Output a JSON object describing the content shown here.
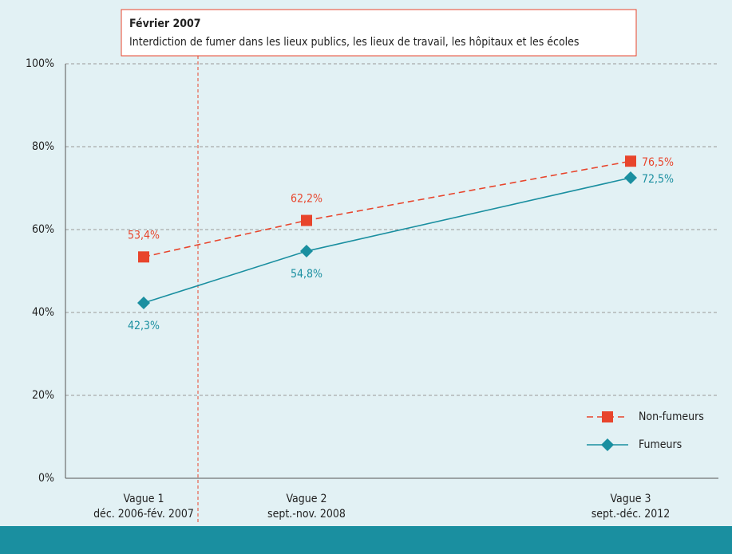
{
  "chart_data": {
    "type": "line",
    "annotation": {
      "title": "Février 2007",
      "text": "Interdiction de fumer dans les lieux publics, les lieux de travail, les hôpitaux et les écoles"
    },
    "categories": [
      [
        "Vague 1",
        "déc. 2006-fév. 2007"
      ],
      [
        "Vague 2",
        "sept.-nov. 2008"
      ],
      [
        "Vague 3",
        "sept.-déc. 2012"
      ]
    ],
    "series": [
      {
        "name": "Non-fumeurs",
        "color": "#e8452c",
        "dashed": true,
        "marker": "square",
        "values": [
          53.4,
          62.2,
          76.5
        ],
        "value_labels": [
          "53,4%",
          "62,2%",
          "76,5%"
        ]
      },
      {
        "name": "Fumeurs",
        "color": "#1a8fa0",
        "dashed": false,
        "marker": "diamond",
        "values": [
          42.3,
          54.8,
          72.5
        ],
        "value_labels": [
          "42,3%",
          "54,8%",
          "72,5%"
        ]
      }
    ],
    "ylim": [
      0,
      100
    ],
    "yticks": [
      {
        "value": 0,
        "label": "0%"
      },
      {
        "value": 20,
        "label": "20%"
      },
      {
        "value": 40,
        "label": "40%"
      },
      {
        "value": 60,
        "label": "60%"
      },
      {
        "value": 80,
        "label": "80%"
      },
      {
        "value": 100,
        "label": "100%"
      }
    ],
    "grid": true,
    "legend": "lower right"
  }
}
